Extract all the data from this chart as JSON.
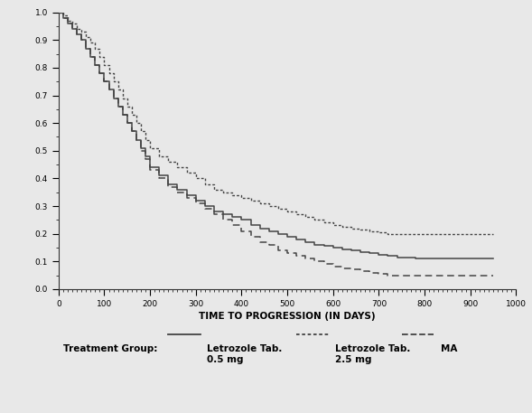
{
  "title": "",
  "xlabel": "TIME TO PROGRESSION (IN DAYS)",
  "ylabel": "",
  "xlim": [
    0,
    1000
  ],
  "ylim": [
    0.0,
    1.0
  ],
  "xticks": [
    0,
    100,
    200,
    300,
    400,
    500,
    600,
    700,
    800,
    900,
    1000
  ],
  "yticks": [
    0.0,
    0.1,
    0.2,
    0.3,
    0.4,
    0.5,
    0.6,
    0.7,
    0.8,
    0.9,
    1.0
  ],
  "background_color": "#e8e8e8",
  "line_color": "#444444",
  "legend_label_treatment": "Treatment Group:",
  "legend_label_05": "Letrozole Tab.\n0.5 mg",
  "legend_label_25": "Letrozole Tab.\n2.5 mg",
  "legend_label_ma": "MA",
  "curve_05_x": [
    0,
    10,
    20,
    30,
    40,
    50,
    60,
    70,
    80,
    90,
    100,
    110,
    120,
    130,
    140,
    150,
    160,
    170,
    180,
    190,
    200,
    220,
    240,
    260,
    280,
    300,
    320,
    340,
    360,
    380,
    400,
    420,
    440,
    460,
    480,
    500,
    520,
    540,
    560,
    580,
    600,
    620,
    640,
    660,
    680,
    700,
    720,
    740,
    760,
    780,
    800,
    820,
    840,
    860,
    880,
    900,
    950
  ],
  "curve_05_y": [
    1.0,
    0.98,
    0.96,
    0.94,
    0.92,
    0.9,
    0.87,
    0.84,
    0.81,
    0.78,
    0.75,
    0.72,
    0.69,
    0.66,
    0.63,
    0.6,
    0.57,
    0.54,
    0.51,
    0.48,
    0.44,
    0.41,
    0.38,
    0.36,
    0.34,
    0.32,
    0.3,
    0.28,
    0.27,
    0.26,
    0.25,
    0.23,
    0.22,
    0.21,
    0.2,
    0.19,
    0.18,
    0.17,
    0.16,
    0.155,
    0.15,
    0.145,
    0.14,
    0.135,
    0.13,
    0.125,
    0.12,
    0.115,
    0.115,
    0.11,
    0.11,
    0.11,
    0.11,
    0.11,
    0.11,
    0.11,
    0.11
  ],
  "curve_25_x": [
    0,
    10,
    20,
    30,
    40,
    50,
    60,
    70,
    80,
    90,
    100,
    110,
    120,
    130,
    140,
    150,
    160,
    170,
    180,
    190,
    200,
    220,
    240,
    260,
    280,
    300,
    320,
    340,
    360,
    380,
    400,
    420,
    440,
    460,
    480,
    500,
    520,
    540,
    560,
    580,
    600,
    620,
    640,
    660,
    680,
    700,
    720,
    740,
    760,
    780,
    800,
    820,
    840,
    860,
    880,
    900,
    950
  ],
  "curve_25_y": [
    1.0,
    0.99,
    0.97,
    0.96,
    0.94,
    0.93,
    0.91,
    0.89,
    0.87,
    0.84,
    0.81,
    0.78,
    0.75,
    0.72,
    0.69,
    0.66,
    0.63,
    0.6,
    0.57,
    0.54,
    0.51,
    0.48,
    0.46,
    0.44,
    0.42,
    0.4,
    0.38,
    0.36,
    0.35,
    0.34,
    0.33,
    0.32,
    0.31,
    0.3,
    0.29,
    0.28,
    0.27,
    0.26,
    0.25,
    0.24,
    0.23,
    0.225,
    0.22,
    0.215,
    0.21,
    0.205,
    0.2,
    0.2,
    0.2,
    0.2,
    0.2,
    0.2,
    0.2,
    0.2,
    0.2,
    0.2,
    0.2
  ],
  "curve_ma_x": [
    0,
    10,
    20,
    30,
    40,
    50,
    60,
    70,
    80,
    90,
    100,
    110,
    120,
    130,
    140,
    150,
    160,
    170,
    180,
    190,
    200,
    220,
    240,
    260,
    280,
    300,
    320,
    340,
    360,
    380,
    400,
    420,
    440,
    460,
    480,
    500,
    520,
    540,
    560,
    580,
    600,
    620,
    640,
    660,
    680,
    700,
    720,
    740,
    760,
    780,
    800,
    820,
    840,
    860,
    880,
    900,
    950
  ],
  "curve_ma_y": [
    1.0,
    0.98,
    0.96,
    0.94,
    0.92,
    0.9,
    0.87,
    0.84,
    0.81,
    0.78,
    0.75,
    0.72,
    0.69,
    0.66,
    0.63,
    0.6,
    0.57,
    0.54,
    0.5,
    0.47,
    0.43,
    0.4,
    0.37,
    0.35,
    0.33,
    0.31,
    0.29,
    0.27,
    0.25,
    0.23,
    0.21,
    0.19,
    0.17,
    0.16,
    0.14,
    0.13,
    0.12,
    0.11,
    0.1,
    0.09,
    0.08,
    0.075,
    0.07,
    0.065,
    0.06,
    0.055,
    0.05,
    0.05,
    0.05,
    0.05,
    0.05,
    0.05,
    0.05,
    0.05,
    0.05,
    0.05,
    0.05
  ]
}
